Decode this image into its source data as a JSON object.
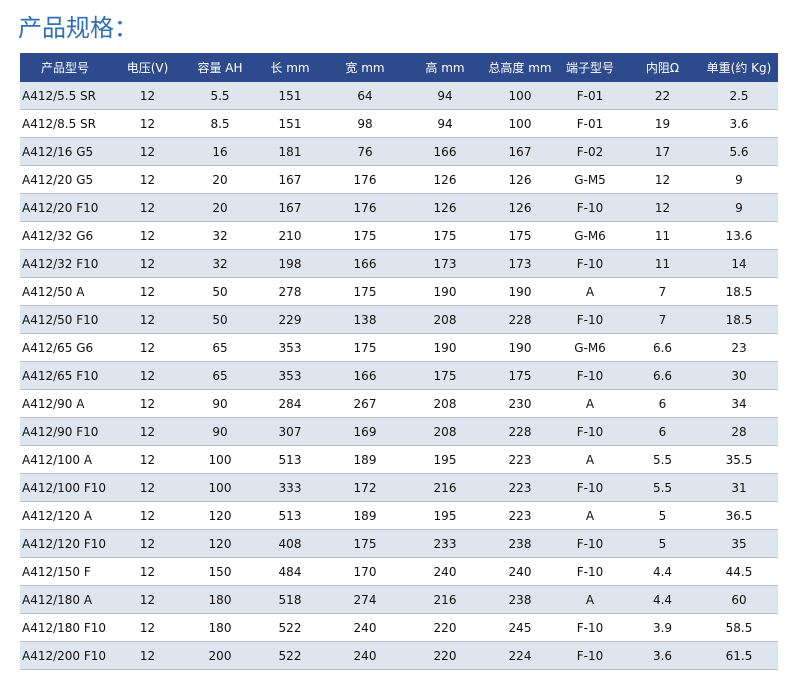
{
  "header": {
    "title": "产品规格："
  },
  "table": {
    "columns": [
      "产品型号",
      "电压(V)",
      "容量 AH",
      "长 mm",
      "宽  mm",
      "高 mm",
      "总高度 mm",
      "端子型号",
      "内阻Ω",
      "单重(约 Kg)"
    ],
    "rows": [
      [
        "A412/5.5 SR",
        "12",
        "5.5",
        "151",
        "64",
        "94",
        "100",
        "F-01",
        "22",
        "2.5"
      ],
      [
        "A412/8.5 SR",
        "12",
        "8.5",
        "151",
        "98",
        "94",
        "100",
        "F-01",
        "19",
        "3.6"
      ],
      [
        "A412/16 G5",
        "12",
        "16",
        "181",
        "76",
        "166",
        "167",
        "F-02",
        "17",
        "5.6"
      ],
      [
        "A412/20 G5",
        "12",
        "20",
        "167",
        "176",
        "126",
        "126",
        "G-M5",
        "12",
        "9"
      ],
      [
        "A412/20 F10",
        "12",
        "20",
        "167",
        "176",
        "126",
        "126",
        "F-10",
        "12",
        "9"
      ],
      [
        "A412/32 G6",
        "12",
        "32",
        "210",
        "175",
        "175",
        "175",
        "G-M6",
        "11",
        "13.6"
      ],
      [
        "A412/32 F10",
        "12",
        "32",
        "198",
        "166",
        "173",
        "173",
        "F-10",
        "11",
        "14"
      ],
      [
        "A412/50 A",
        "12",
        "50",
        "278",
        "175",
        "190",
        "190",
        "A",
        "7",
        "18.5"
      ],
      [
        "A412/50 F10",
        "12",
        "50",
        "229",
        "138",
        "208",
        "228",
        "F-10",
        "7",
        "18.5"
      ],
      [
        "A412/65 G6",
        "12",
        "65",
        "353",
        "175",
        "190",
        "190",
        "G-M6",
        "6.6",
        "23"
      ],
      [
        "A412/65 F10",
        "12",
        "65",
        "353",
        "166",
        "175",
        "175",
        "F-10",
        "6.6",
        "30"
      ],
      [
        "A412/90 A",
        "12",
        "90",
        "284",
        "267",
        "208",
        "230",
        "A",
        "6",
        "34"
      ],
      [
        "A412/90 F10",
        "12",
        "90",
        "307",
        "169",
        "208",
        "228",
        "F-10",
        "6",
        "28"
      ],
      [
        "A412/100 A",
        "12",
        "100",
        "513",
        "189",
        "195",
        "223",
        "A",
        "5.5",
        "35.5"
      ],
      [
        "A412/100 F10",
        "12",
        "100",
        "333",
        "172",
        "216",
        "223",
        "F-10",
        "5.5",
        "31"
      ],
      [
        "A412/120 A",
        "12",
        "120",
        "513",
        "189",
        "195",
        "223",
        "A",
        "5",
        "36.5"
      ],
      [
        "A412/120 F10",
        "12",
        "120",
        "408",
        "175",
        "233",
        "238",
        "F-10",
        "5",
        "35"
      ],
      [
        "A412/150 F",
        "12",
        "150",
        "484",
        "170",
        "240",
        "240",
        "F-10",
        "4.4",
        "44.5"
      ],
      [
        "A412/180 A",
        "12",
        "180",
        "518",
        "274",
        "216",
        "238",
        "A",
        "4.4",
        "60"
      ],
      [
        "A412/180 F10",
        "12",
        "180",
        "522",
        "240",
        "220",
        "245",
        "F-10",
        "3.9",
        "58.5"
      ],
      [
        "A412/200 F10",
        "12",
        "200",
        "522",
        "240",
        "220",
        "224",
        "F-10",
        "3.6",
        "61.5"
      ]
    ]
  }
}
